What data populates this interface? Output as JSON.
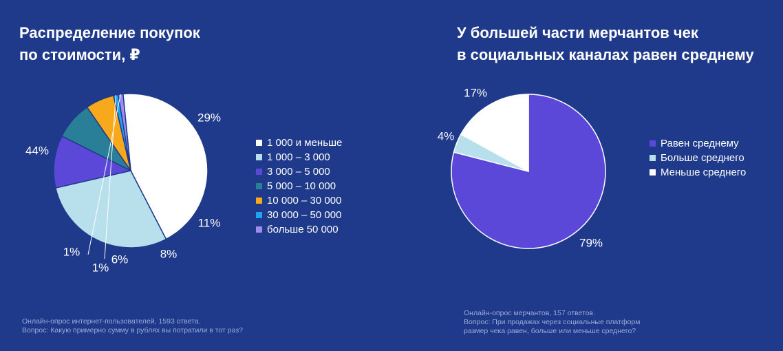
{
  "colors": {
    "background": "#1f3a8a",
    "white": "#ffffff",
    "light_blue": "#b8e0ec",
    "violet": "#5b48d9",
    "teal": "#2a7f98",
    "orange": "#f7a81b",
    "sky": "#21a3f3",
    "lavender": "#9e8cf0",
    "footnote": "#9aaad8"
  },
  "left": {
    "title_line1": "Распределение покупок",
    "title_line2": "по стоимости, ₽",
    "footnote_line1": "Онлайн-опрос интернет-пользователей, 1593 ответа.",
    "footnote_line2": "Вопрос: Какую примерно сумму в рублях вы потратили в тот раз?"
  },
  "right": {
    "title_line1": "У большей части мерчантов чек",
    "title_line2": "в социальных каналах равен среднему",
    "footnote_line1": "Онлайн-опрос мерчантов, 157 ответов.",
    "footnote_line2": "Вопрос: При продажах через социальные платформ",
    "footnote_line3": "размер чека равен, больше или меньше среднего?"
  },
  "chart_data": [
    {
      "type": "pie",
      "title": "Распределение покупок по стоимости, ₽",
      "slices": [
        {
          "label": "1 000 и меньше",
          "value": 44,
          "display": "44%",
          "color": "#ffffff"
        },
        {
          "label": "1 000 – 3 000",
          "value": 29,
          "display": "29%",
          "color": "#b8e0ec"
        },
        {
          "label": "3 000 – 5 000",
          "value": 11,
          "display": "11%",
          "color": "#5b48d9"
        },
        {
          "label": "5 000 – 10 000",
          "value": 8,
          "display": "8%",
          "color": "#2a7f98"
        },
        {
          "label": "10 000 – 30 000",
          "value": 6,
          "display": "6%",
          "color": "#f7a81b"
        },
        {
          "label": "30 000 – 50 000",
          "value": 1,
          "display": "1%",
          "color": "#21a3f3"
        },
        {
          "label": "больше 50 000",
          "value": 1,
          "display": "1%",
          "color": "#9e8cf0"
        }
      ],
      "legend_position": "right"
    },
    {
      "type": "pie",
      "title": "У большей части мерчантов чек в социальных каналах равен среднему",
      "slices": [
        {
          "label": "Равен среднему",
          "value": 79,
          "display": "79%",
          "color": "#5b48d9"
        },
        {
          "label": "Больше среднего",
          "value": 4,
          "display": "4%",
          "color": "#b8e0ec"
        },
        {
          "label": "Меньше среднего",
          "value": 17,
          "display": "17%",
          "color": "#ffffff"
        }
      ],
      "legend_position": "right"
    }
  ]
}
